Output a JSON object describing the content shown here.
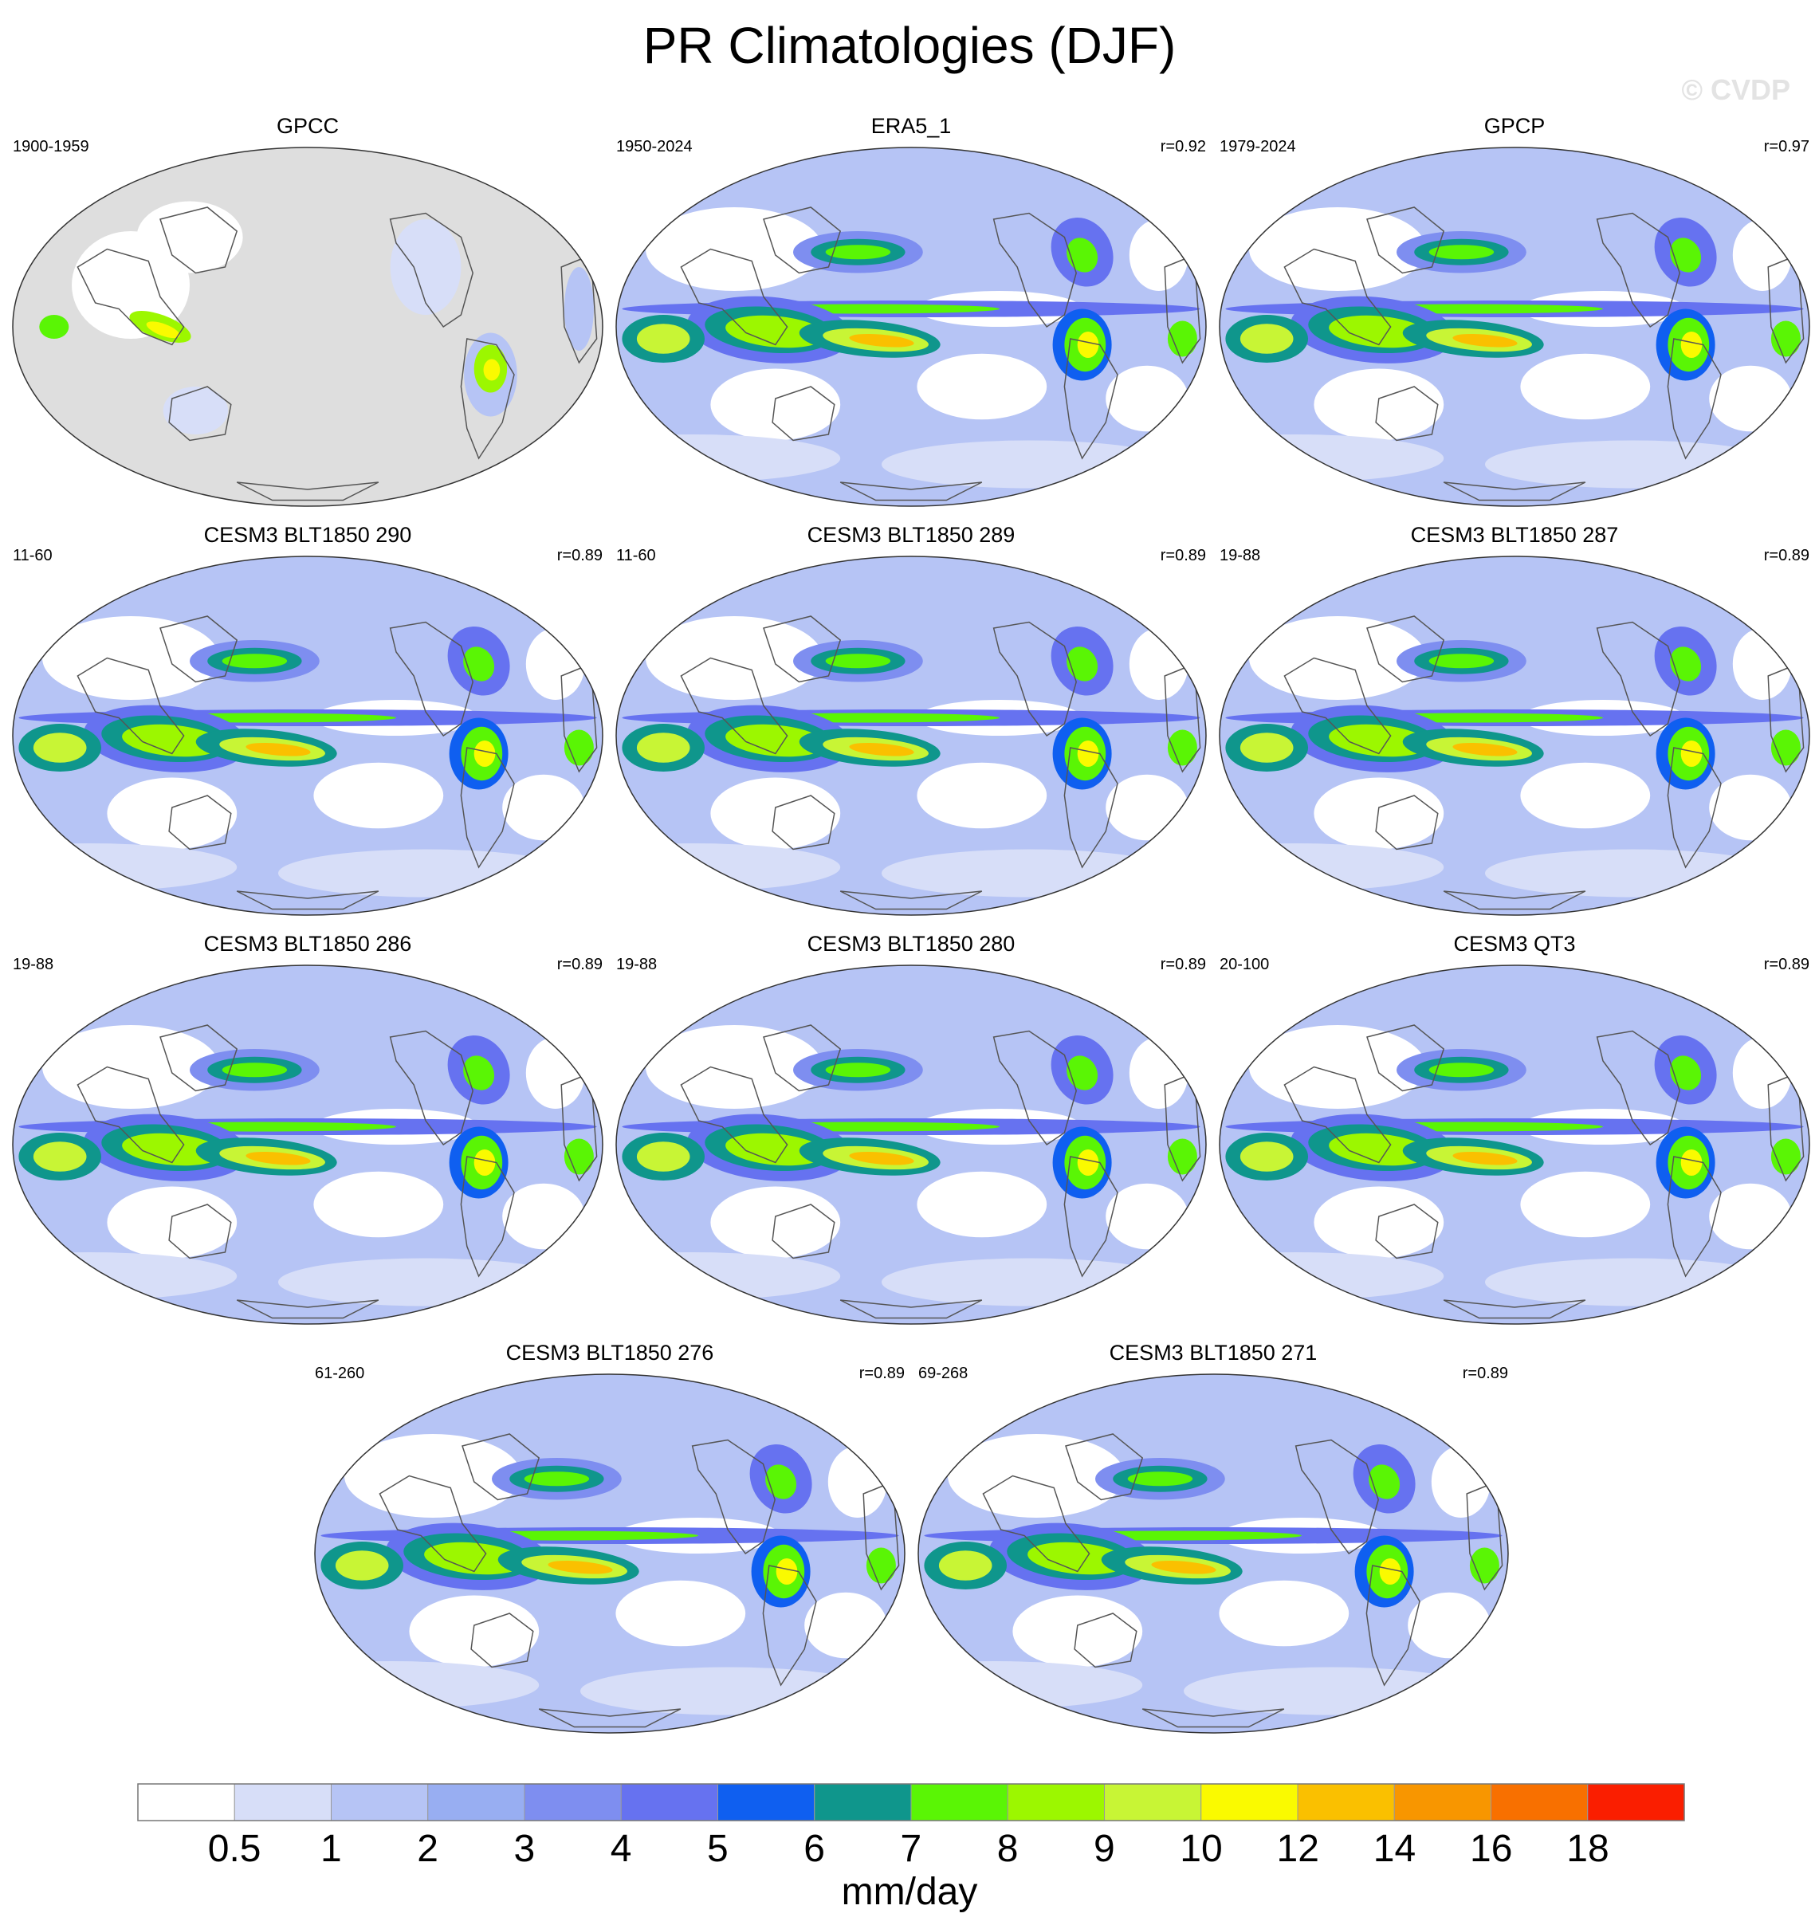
{
  "title": "PR Climatologies (DJF)",
  "watermark": "© CVDP",
  "chart_data": {
    "type": "heatmap",
    "projection": "robinson",
    "central_longitude": 180,
    "panels": [
      {
        "name": "GPCC",
        "period": "1900-1959",
        "r": "",
        "land_only": true
      },
      {
        "name": "ERA5_1",
        "period": "1950-2024",
        "r": "r=0.92"
      },
      {
        "name": "GPCP",
        "period": "1979-2024",
        "r": "r=0.97"
      },
      {
        "name": "CESM3 BLT1850 290",
        "period": "11-60",
        "r": "r=0.89"
      },
      {
        "name": "CESM3 BLT1850 289",
        "period": "11-60",
        "r": "r=0.89"
      },
      {
        "name": "CESM3 BLT1850 287",
        "period": "19-88",
        "r": "r=0.89"
      },
      {
        "name": "CESM3 BLT1850 286",
        "period": "19-88",
        "r": "r=0.89"
      },
      {
        "name": "CESM3 BLT1850 280",
        "period": "19-88",
        "r": "r=0.89"
      },
      {
        "name": "CESM3 QT3",
        "period": "20-100",
        "r": "r=0.89"
      },
      {
        "name": "CESM3 BLT1850 276",
        "period": "61-260",
        "r": "r=0.89"
      },
      {
        "name": "CESM3 BLT1850 271",
        "period": "69-268",
        "r": "r=0.89"
      }
    ],
    "colorbar": {
      "label": "mm/day",
      "levels": [
        "0.5",
        "1",
        "2",
        "3",
        "4",
        "5",
        "6",
        "7",
        "8",
        "9",
        "10",
        "12",
        "14",
        "16",
        "18"
      ],
      "colors": [
        "#ffffff",
        "#d7def8",
        "#b6c4f5",
        "#98aef2",
        "#7e8ef0",
        "#6672f0",
        "#0f5ff0",
        "#0f968c",
        "#5af505",
        "#9cf700",
        "#c8f535",
        "#fafa00",
        "#fac000",
        "#f89600",
        "#f87000",
        "#fa1e00"
      ]
    }
  }
}
